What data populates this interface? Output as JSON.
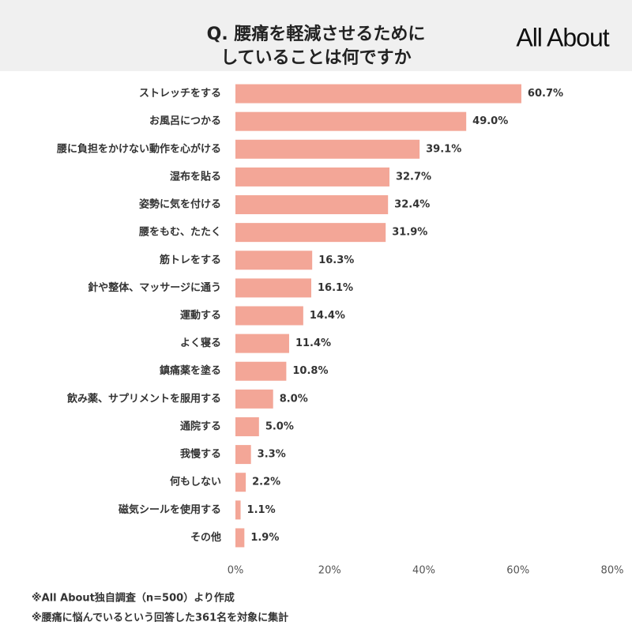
{
  "logo": "All About",
  "chart_data": {
    "type": "bar",
    "orientation": "horizontal",
    "title": [
      "Q. 腰痛を軽減させるために",
      "していることは何ですか"
    ],
    "categories": [
      "ストレッチをする",
      "お風呂につかる",
      "腰に負担をかけない動作を心がける",
      "湿布を貼る",
      "姿勢に気を付ける",
      "腰をもむ、たたく",
      "筋トレをする",
      "針や整体、マッサージに通う",
      "運動する",
      "よく寝る",
      "鎮痛薬を塗る",
      "飲み薬、サプリメントを服用する",
      "通院する",
      "我慢する",
      "何もしない",
      "磁気シールを使用する",
      "その他"
    ],
    "values": [
      60.7,
      49.0,
      39.1,
      32.7,
      32.4,
      31.9,
      16.3,
      16.1,
      14.4,
      11.4,
      10.8,
      8.0,
      5.0,
      3.3,
      2.2,
      1.1,
      1.9
    ],
    "value_labels": [
      "60.7%",
      "49.0%",
      "39.1%",
      "32.7%",
      "32.4%",
      "31.9%",
      "16.3%",
      "16.1%",
      "14.4%",
      "11.4%",
      "10.8%",
      "8.0%",
      "5.0%",
      "3.3%",
      "2.2%",
      "1.1%",
      "1.9%"
    ],
    "color": "#f3a697",
    "xlim": [
      0,
      80
    ],
    "xticks": [
      {
        "value": 0,
        "label": "0%"
      },
      {
        "value": 20,
        "label": "20%"
      },
      {
        "value": 40,
        "label": "40%"
      },
      {
        "value": 60,
        "label": "60%"
      },
      {
        "value": 80,
        "label": "80%"
      }
    ],
    "notes": [
      "※All About独自調査（n=500）より作成",
      "※腰痛に悩んでいるという回答した361名を対象に集計"
    ]
  }
}
